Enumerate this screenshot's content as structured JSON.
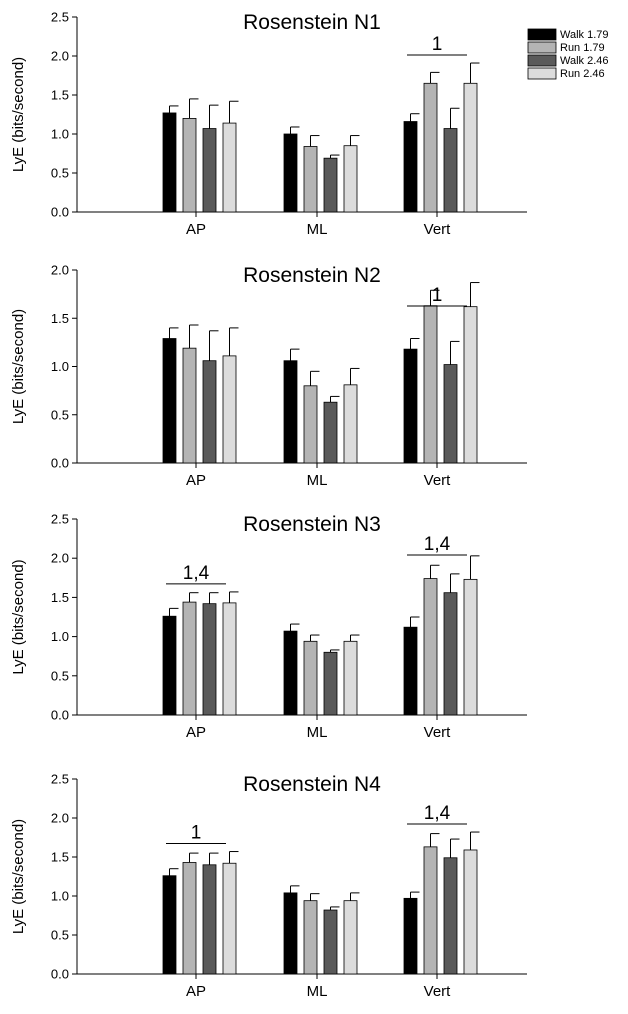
{
  "chart_data": [
    {
      "type": "bar",
      "title": "Rosenstein N1",
      "ylabel": "LyE (bits/second)",
      "ylim": [
        0,
        2.5
      ],
      "yticks": [
        "0.0",
        "0.5",
        "1.0",
        "1.5",
        "2.0",
        "2.5"
      ],
      "categories": [
        "AP",
        "ML",
        "Vert"
      ],
      "series": [
        {
          "name": "Walk 1.79",
          "values": [
            1.27,
            1.0,
            1.16
          ],
          "errors": [
            0.09,
            0.09,
            0.1
          ]
        },
        {
          "name": "Run 1.79",
          "values": [
            1.2,
            0.84,
            1.65
          ],
          "errors": [
            0.25,
            0.14,
            0.14
          ]
        },
        {
          "name": "Walk 2.46",
          "values": [
            1.07,
            0.69,
            1.07
          ],
          "errors": [
            0.3,
            0.04,
            0.26
          ]
        },
        {
          "name": "Run 2.46",
          "values": [
            1.14,
            0.85,
            1.65
          ],
          "errors": [
            0.28,
            0.13,
            0.26
          ]
        }
      ],
      "annotations": [
        {
          "category": "Vert",
          "text": "1"
        }
      ],
      "legend": "top-right"
    },
    {
      "type": "bar",
      "title": "Rosenstein N2",
      "ylabel": "LyE (bits/second)",
      "ylim": [
        0,
        2.0
      ],
      "yticks": [
        "0.0",
        "0.5",
        "1.0",
        "1.5",
        "2.0"
      ],
      "categories": [
        "AP",
        "ML",
        "Vert"
      ],
      "series": [
        {
          "name": "Walk 1.79",
          "values": [
            1.29,
            1.06,
            1.18
          ],
          "errors": [
            0.11,
            0.12,
            0.11
          ]
        },
        {
          "name": "Run 1.79",
          "values": [
            1.19,
            0.8,
            1.63
          ],
          "errors": [
            0.24,
            0.15,
            0.16
          ]
        },
        {
          "name": "Walk 2.46",
          "values": [
            1.06,
            0.63,
            1.02
          ],
          "errors": [
            0.31,
            0.06,
            0.24
          ]
        },
        {
          "name": "Run 2.46",
          "values": [
            1.11,
            0.81,
            1.62
          ],
          "errors": [
            0.29,
            0.17,
            0.25
          ]
        }
      ],
      "annotations": [
        {
          "category": "Vert",
          "text": "1"
        }
      ]
    },
    {
      "type": "bar",
      "title": "Rosenstein N3",
      "ylabel": "LyE (bits/second)",
      "ylim": [
        0,
        2.5
      ],
      "yticks": [
        "0.0",
        "0.5",
        "1.0",
        "1.5",
        "2.0",
        "2.5"
      ],
      "categories": [
        "AP",
        "ML",
        "Vert"
      ],
      "series": [
        {
          "name": "Walk 1.79",
          "values": [
            1.26,
            1.07,
            1.12
          ],
          "errors": [
            0.1,
            0.09,
            0.13
          ]
        },
        {
          "name": "Run 1.79",
          "values": [
            1.44,
            0.94,
            1.74
          ],
          "errors": [
            0.12,
            0.08,
            0.17
          ]
        },
        {
          "name": "Walk 2.46",
          "values": [
            1.42,
            0.8,
            1.56
          ],
          "errors": [
            0.14,
            0.03,
            0.24
          ]
        },
        {
          "name": "Run 2.46",
          "values": [
            1.43,
            0.94,
            1.73
          ],
          "errors": [
            0.14,
            0.08,
            0.3
          ]
        }
      ],
      "annotations": [
        {
          "category": "AP",
          "text": "1,4"
        },
        {
          "category": "Vert",
          "text": "1,4"
        }
      ]
    },
    {
      "type": "bar",
      "title": "Rosenstein N4",
      "ylabel": "LyE (bits/second)",
      "ylim": [
        0,
        2.5
      ],
      "yticks": [
        "0.0",
        "0.5",
        "1.0",
        "1.5",
        "2.0",
        "2.5"
      ],
      "categories": [
        "AP",
        "ML",
        "Vert"
      ],
      "series": [
        {
          "name": "Walk 1.79",
          "values": [
            1.26,
            1.04,
            0.97
          ],
          "errors": [
            0.09,
            0.09,
            0.08
          ]
        },
        {
          "name": "Run 1.79",
          "values": [
            1.43,
            0.94,
            1.63
          ],
          "errors": [
            0.12,
            0.09,
            0.17
          ]
        },
        {
          "name": "Walk 2.46",
          "values": [
            1.4,
            0.82,
            1.49
          ],
          "errors": [
            0.15,
            0.04,
            0.24
          ]
        },
        {
          "name": "Run 2.46",
          "values": [
            1.42,
            0.94,
            1.59
          ],
          "errors": [
            0.15,
            0.1,
            0.23
          ]
        }
      ],
      "annotations": [
        {
          "category": "AP",
          "text": "1"
        },
        {
          "category": "Vert",
          "text": "1,4"
        }
      ]
    }
  ],
  "colors": {
    "Walk 1.79": "#000000",
    "Run 1.79": "#b4b4b4",
    "Walk 2.46": "#5a5a5a",
    "Run 2.46": "#dcdcdc"
  }
}
